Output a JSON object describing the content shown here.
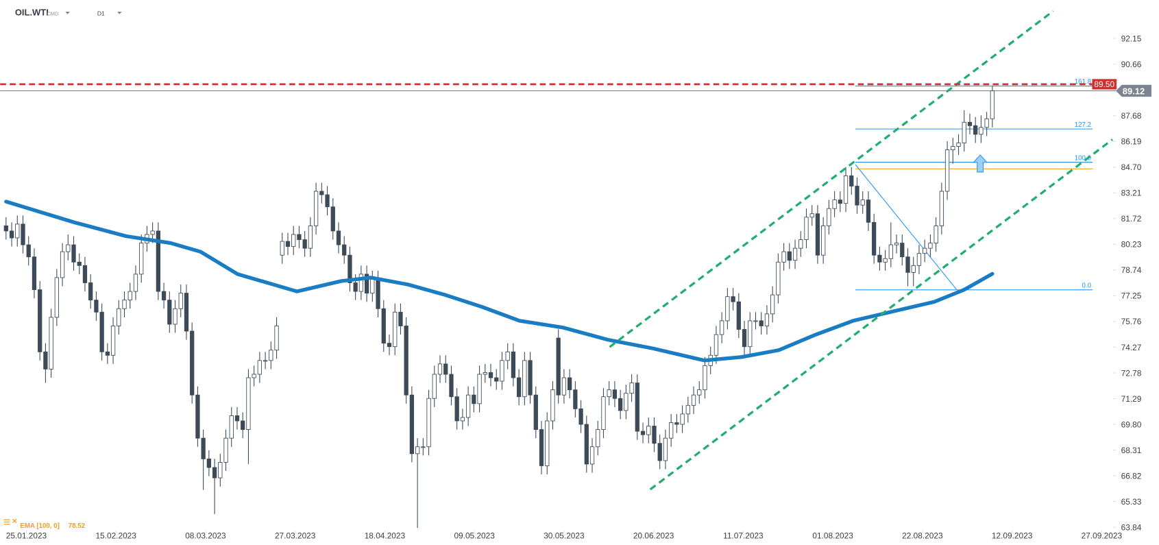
{
  "chart_data": {
    "type": "candlestick",
    "title": "OIL.WTI",
    "subtitle": "CMD",
    "timeframe": "D1",
    "up_color": "#ffffff",
    "down_color": "#3d4a57",
    "wick_color": "#3d4a57",
    "xlim": [
      -1.05,
      195.6
    ],
    "xticks": [
      {
        "value": 3.6,
        "label": "25.01.2023"
      },
      {
        "value": 19.5,
        "label": "15.02.2023"
      },
      {
        "value": 35.4,
        "label": "08.03.2023"
      },
      {
        "value": 51.3,
        "label": "27.03.2023"
      },
      {
        "value": 67.2,
        "label": "18.04.2023"
      },
      {
        "value": 83.1,
        "label": "09.05.2023"
      },
      {
        "value": 99.0,
        "label": "30.05.2023"
      },
      {
        "value": 114.9,
        "label": "20.06.2023"
      },
      {
        "value": 130.8,
        "label": "11.07.2023"
      },
      {
        "value": 146.7,
        "label": "01.08.2023"
      },
      {
        "value": 162.6,
        "label": "22.08.2023"
      },
      {
        "value": 178.5,
        "label": "12.09.2023"
      },
      {
        "value": 194.4,
        "label": "27.09.2023"
      }
    ],
    "ylim": [
      63.4,
      94.38
    ],
    "yticks": [
      92.15,
      90.66,
      87.68,
      86.19,
      {
        "value": 84.7,
        "label": "84.70"
      },
      83.21,
      81.72,
      80.23,
      78.74,
      77.25,
      75.76,
      74.27,
      72.78,
      71.29,
      {
        "value": 69.8,
        "label": "69.80"
      },
      68.31,
      66.82,
      65.33,
      63.84
    ],
    "candles": [
      [
        81.3,
        81.8,
        80.5,
        81.0
      ],
      [
        81.0,
        81.5,
        80.1,
        80.6
      ],
      [
        80.6,
        81.9,
        80.1,
        81.4
      ],
      [
        81.4,
        81.9,
        79.7,
        80.2
      ],
      [
        80.2,
        80.7,
        79.0,
        79.5
      ],
      [
        79.5,
        80.0,
        77.1,
        77.6
      ],
      [
        77.6,
        78.1,
        73.5,
        74.0
      ],
      [
        74.0,
        74.5,
        72.2,
        73.0
      ],
      [
        73.0,
        76.5,
        72.5,
        76.0
      ],
      [
        76.0,
        78.8,
        75.5,
        78.3
      ],
      [
        78.3,
        80.3,
        77.8,
        79.8
      ],
      [
        79.8,
        80.8,
        79.3,
        80.2
      ],
      [
        80.2,
        80.7,
        78.7,
        79.2
      ],
      [
        79.2,
        79.7,
        78.5,
        79.0
      ],
      [
        79.0,
        79.5,
        77.5,
        78.0
      ],
      [
        78.0,
        78.5,
        76.5,
        77.0
      ],
      [
        77.0,
        77.5,
        75.8,
        76.3
      ],
      [
        76.3,
        76.8,
        73.5,
        74.0
      ],
      [
        74.0,
        74.5,
        73.3,
        73.8
      ],
      [
        73.8,
        76.0,
        73.3,
        75.5
      ],
      [
        75.5,
        77.0,
        75.0,
        76.5
      ],
      [
        76.5,
        77.5,
        76.0,
        77.0
      ],
      [
        77.0,
        78.0,
        76.5,
        77.5
      ],
      [
        77.5,
        79.0,
        77.0,
        78.5
      ],
      [
        78.5,
        80.8,
        78.0,
        80.3
      ],
      [
        80.3,
        81.3,
        79.8,
        80.8
      ],
      [
        80.8,
        81.5,
        80.3,
        81.0
      ],
      [
        81.0,
        81.5,
        77.0,
        77.5
      ],
      [
        77.5,
        78.0,
        76.5,
        77.0
      ],
      [
        77.0,
        77.5,
        75.1,
        75.6
      ],
      [
        75.6,
        77.0,
        75.1,
        76.5
      ],
      [
        76.5,
        77.9,
        76.0,
        77.4
      ],
      [
        77.4,
        77.9,
        74.7,
        75.2
      ],
      [
        75.2,
        75.7,
        71.0,
        71.5
      ],
      [
        71.5,
        72.0,
        68.5,
        69.0
      ],
      [
        69.0,
        69.5,
        66.0,
        67.8
      ],
      [
        67.8,
        68.3,
        66.8,
        67.3
      ],
      [
        67.3,
        67.8,
        64.6,
        66.7
      ],
      [
        66.7,
        68.1,
        66.2,
        67.6
      ],
      [
        67.6,
        69.5,
        67.1,
        69.0
      ],
      [
        69.0,
        70.8,
        68.5,
        70.3
      ],
      [
        70.3,
        70.8,
        69.5,
        70.0
      ],
      [
        70.0,
        70.5,
        69.0,
        69.5
      ],
      [
        69.5,
        73.0,
        67.5,
        72.5
      ],
      [
        72.5,
        73.2,
        72.0,
        72.7
      ],
      [
        72.7,
        74.0,
        72.2,
        73.5
      ],
      [
        73.5,
        74.0,
        73.0,
        73.5
      ],
      [
        73.5,
        74.6,
        73.0,
        74.1
      ],
      [
        74.1,
        76.0,
        73.6,
        75.5
      ],
      [
        79.6,
        80.9,
        79.1,
        80.4
      ],
      [
        80.4,
        80.9,
        79.6,
        80.1
      ],
      [
        80.1,
        81.3,
        79.6,
        80.8
      ],
      [
        80.8,
        81.3,
        80.0,
        80.5
      ],
      [
        80.5,
        81.0,
        79.5,
        80.0
      ],
      [
        80.0,
        81.8,
        79.5,
        81.3
      ],
      [
        81.3,
        83.8,
        80.8,
        83.3
      ],
      [
        83.3,
        83.8,
        82.6,
        83.1
      ],
      [
        83.1,
        83.6,
        81.9,
        82.4
      ],
      [
        82.4,
        82.9,
        80.5,
        81.0
      ],
      [
        81.0,
        81.5,
        79.7,
        80.2
      ],
      [
        80.2,
        80.7,
        79.1,
        79.6
      ],
      [
        79.6,
        80.1,
        77.5,
        78.0
      ],
      [
        78.0,
        78.5,
        77.0,
        77.5
      ],
      [
        77.5,
        79.0,
        77.0,
        78.5
      ],
      [
        78.5,
        79.0,
        76.9,
        77.4
      ],
      [
        77.4,
        78.7,
        76.9,
        78.2
      ],
      [
        78.2,
        78.7,
        76.0,
        76.5
      ],
      [
        76.5,
        77.0,
        74.0,
        74.5
      ],
      [
        74.5,
        75.0,
        73.8,
        74.3
      ],
      [
        74.3,
        76.8,
        73.8,
        76.3
      ],
      [
        76.3,
        76.8,
        75.0,
        75.5
      ],
      [
        75.5,
        76.0,
        71.0,
        71.5
      ],
      [
        71.5,
        72.0,
        67.6,
        68.1
      ],
      [
        68.1,
        69.0,
        63.8,
        68.5
      ],
      [
        68.5,
        69.0,
        68.0,
        68.5
      ],
      [
        68.5,
        71.8,
        68.0,
        71.3
      ],
      [
        71.3,
        73.2,
        70.8,
        72.7
      ],
      [
        72.7,
        73.8,
        72.2,
        73.3
      ],
      [
        73.3,
        73.8,
        72.2,
        72.7
      ],
      [
        72.7,
        73.2,
        70.9,
        71.4
      ],
      [
        71.4,
        71.9,
        69.5,
        70.0
      ],
      [
        70.0,
        70.7,
        69.5,
        70.2
      ],
      [
        70.2,
        72.0,
        69.7,
        71.5
      ],
      [
        71.5,
        72.0,
        70.5,
        71.0
      ],
      [
        71.0,
        73.2,
        70.5,
        72.7
      ],
      [
        72.7,
        73.3,
        72.2,
        72.8
      ],
      [
        72.8,
        73.3,
        72.0,
        72.5
      ],
      [
        72.5,
        73.0,
        71.8,
        72.3
      ],
      [
        72.3,
        74.0,
        71.8,
        73.5
      ],
      [
        73.5,
        74.5,
        73.0,
        74.0
      ],
      [
        74.0,
        74.5,
        72.0,
        72.5
      ],
      [
        72.5,
        73.0,
        70.9,
        71.4
      ],
      [
        71.4,
        74.0,
        70.9,
        73.5
      ],
      [
        73.5,
        74.0,
        71.0,
        71.5
      ],
      [
        71.5,
        72.0,
        69.0,
        69.5
      ],
      [
        69.5,
        70.0,
        66.9,
        67.4
      ],
      [
        67.4,
        70.5,
        66.9,
        70.0
      ],
      [
        70.0,
        72.3,
        69.5,
        71.8
      ],
      [
        74.8,
        75.3,
        71.0,
        71.5
      ],
      [
        71.5,
        73.0,
        71.0,
        72.5
      ],
      [
        72.5,
        73.0,
        71.3,
        71.8
      ],
      [
        71.8,
        72.3,
        70.2,
        70.7
      ],
      [
        70.7,
        71.2,
        69.3,
        69.8
      ],
      [
        69.8,
        70.3,
        67.0,
        67.5
      ],
      [
        67.5,
        69.0,
        67.0,
        68.5
      ],
      [
        68.5,
        70.0,
        68.0,
        69.5
      ],
      [
        69.5,
        71.9,
        69.0,
        71.4
      ],
      [
        71.4,
        72.3,
        70.9,
        71.8
      ],
      [
        71.8,
        72.3,
        70.8,
        71.3
      ],
      [
        71.3,
        71.8,
        70.1,
        70.6
      ],
      [
        70.6,
        72.1,
        70.1,
        71.6
      ],
      [
        71.6,
        72.7,
        71.1,
        72.2
      ],
      [
        72.2,
        72.7,
        68.9,
        69.4
      ],
      [
        69.4,
        69.9,
        68.7,
        69.2
      ],
      [
        69.2,
        70.2,
        68.7,
        69.7
      ],
      [
        69.7,
        70.2,
        68.2,
        68.7
      ],
      [
        68.7,
        69.2,
        67.2,
        67.7
      ],
      [
        67.7,
        69.5,
        67.2,
        69.0
      ],
      [
        69.0,
        70.4,
        68.5,
        69.9
      ],
      [
        69.9,
        70.4,
        69.3,
        69.8
      ],
      [
        69.8,
        70.9,
        69.3,
        70.4
      ],
      [
        70.4,
        71.4,
        69.9,
        70.9
      ],
      [
        70.9,
        72.0,
        70.4,
        71.5
      ],
      [
        71.5,
        72.3,
        71.0,
        71.8
      ],
      [
        71.8,
        73.7,
        71.3,
        73.2
      ],
      [
        73.2,
        74.3,
        72.7,
        73.8
      ],
      [
        73.8,
        75.5,
        73.3,
        75.0
      ],
      [
        75.0,
        76.3,
        74.5,
        75.8
      ],
      [
        75.8,
        77.7,
        75.3,
        77.2
      ],
      [
        77.2,
        77.7,
        76.4,
        76.9
      ],
      [
        76.9,
        77.4,
        74.8,
        75.3
      ],
      [
        75.3,
        75.8,
        73.8,
        74.3
      ],
      [
        74.3,
        76.3,
        73.8,
        75.8
      ],
      [
        75.8,
        76.3,
        75.3,
        75.8
      ],
      [
        75.8,
        76.3,
        75.0,
        75.5
      ],
      [
        75.5,
        76.7,
        75.0,
        76.2
      ],
      [
        76.2,
        77.8,
        75.7,
        77.3
      ],
      [
        77.3,
        79.7,
        76.8,
        79.2
      ],
      [
        79.2,
        80.3,
        78.7,
        79.8
      ],
      [
        79.8,
        80.3,
        78.8,
        79.3
      ],
      [
        79.3,
        80.5,
        78.8,
        80.0
      ],
      [
        80.0,
        81.0,
        79.5,
        80.5
      ],
      [
        80.5,
        82.3,
        80.0,
        81.8
      ],
      [
        81.8,
        82.5,
        81.3,
        82.0
      ],
      [
        82.0,
        82.5,
        79.1,
        79.6
      ],
      [
        79.6,
        81.8,
        79.1,
        81.3
      ],
      [
        81.3,
        82.8,
        80.8,
        82.3
      ],
      [
        82.3,
        83.3,
        81.8,
        82.8
      ],
      [
        82.8,
        83.3,
        82.1,
        82.6
      ],
      [
        82.6,
        84.7,
        82.1,
        84.2
      ],
      [
        84.2,
        84.7,
        83.1,
        83.6
      ],
      [
        83.6,
        84.1,
        82.0,
        82.5
      ],
      [
        82.5,
        83.3,
        82.0,
        82.8
      ],
      [
        82.8,
        83.3,
        81.0,
        81.5
      ],
      [
        81.5,
        82.0,
        79.1,
        79.6
      ],
      [
        79.6,
        80.1,
        78.7,
        79.2
      ],
      [
        79.2,
        79.9,
        78.7,
        79.4
      ],
      [
        79.4,
        81.5,
        78.9,
        80.2
      ],
      [
        80.2,
        80.8,
        79.7,
        80.3
      ],
      [
        80.3,
        80.8,
        79.0,
        79.5
      ],
      [
        79.5,
        80.0,
        77.8,
        78.6
      ],
      [
        78.6,
        79.5,
        77.8,
        79.0
      ],
      [
        79.0,
        80.2,
        78.5,
        79.7
      ],
      [
        79.7,
        80.5,
        79.2,
        80.0
      ],
      [
        80.0,
        80.8,
        79.5,
        80.3
      ],
      [
        80.3,
        81.8,
        79.8,
        81.3
      ],
      [
        81.3,
        83.8,
        80.8,
        83.3
      ],
      [
        83.3,
        86.2,
        82.8,
        85.7
      ],
      [
        85.7,
        86.4,
        84.9,
        85.9
      ],
      [
        85.9,
        86.6,
        85.4,
        86.1
      ],
      [
        86.1,
        88.0,
        85.6,
        87.3
      ],
      [
        87.3,
        87.8,
        86.6,
        87.1
      ],
      [
        87.1,
        87.6,
        86.1,
        86.6
      ],
      [
        86.6,
        87.7,
        86.1,
        87.0
      ],
      [
        87.0,
        87.9,
        86.5,
        87.5
      ],
      [
        87.5,
        89.4,
        87.0,
        89.12
      ]
    ],
    "ema": {
      "name": "EMA [100, 0]",
      "color": "#1a7dc4",
      "x": [
        0,
        12.1,
        21.3,
        29.2,
        34.5,
        41.1,
        51.6,
        59.5,
        64.7,
        71.3,
        77.9,
        84.5,
        91.1,
        98.9,
        106.8,
        114.7,
        123.9,
        130.5,
        137.1,
        143.7,
        150.3,
        156.8,
        164.7,
        170,
        175
      ],
      "values": [
        82.7,
        81.5,
        80.7,
        80.3,
        79.8,
        78.5,
        77.5,
        78.1,
        78.3,
        77.9,
        77.3,
        76.6,
        75.8,
        75.4,
        74.7,
        74.2,
        73.5,
        73.7,
        74.1,
        75.0,
        75.8,
        76.3,
        76.9,
        77.6,
        78.52
      ]
    },
    "channel_color": "#1fae6e",
    "channels": [
      {
        "x": [
          107.1,
          185.8
        ],
        "y": [
          74.28,
          93.74
        ]
      },
      {
        "x": [
          114.3,
          196.3
        ],
        "y": [
          66.03,
          86.3
        ]
      }
    ],
    "fib_color": "#2196f3",
    "fib_x": [
      150.7,
      192.8
    ],
    "fib_levels": [
      {
        "value": 89.4,
        "label": "161.8"
      },
      {
        "value": 86.91,
        "label": "127.2"
      },
      {
        "value": 84.98,
        "label": "100.0"
      },
      {
        "value": 77.59,
        "label": "0.0"
      }
    ],
    "fib_diagonal": {
      "x": [
        150.7,
        168.7
      ],
      "y": [
        84.85,
        77.59
      ]
    },
    "zone_color": "#f0a020",
    "zone": [
      84.98,
      84.6
    ],
    "resistance": {
      "value": 89.5,
      "label": "89.50",
      "color": "#d32f2f"
    },
    "last_price": {
      "value": 89.12,
      "label": "89.12",
      "color": "#7b8490"
    }
  }
}
